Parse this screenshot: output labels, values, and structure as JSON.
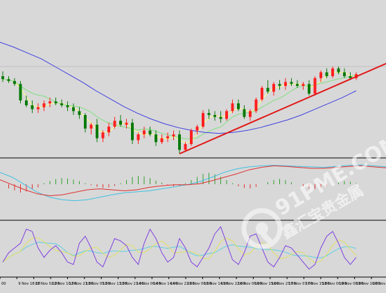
{
  "chart_data": [
    {
      "type": "candlestick",
      "panel": "price",
      "overlays": [
        {
          "name": "",
          "color": "#ffff80"
        },
        {
          "name": "",
          "color": "#80e080"
        },
        {
          "name": "",
          "color": "#4040e0"
        },
        {
          "name": "",
          "color": "#e02020"
        }
      ],
      "horizontal_line": {
        "color": "#c0c0c0"
      },
      "candles": [
        {
          "i": 0,
          "o": 0.8,
          "h": 0.85,
          "l": 0.74,
          "c": 0.77
        },
        {
          "i": 1,
          "o": 0.77,
          "h": 0.8,
          "l": 0.73,
          "c": 0.75
        },
        {
          "i": 2,
          "o": 0.75,
          "h": 0.78,
          "l": 0.7,
          "c": 0.72
        },
        {
          "i": 3,
          "o": 0.72,
          "h": 0.75,
          "l": 0.52,
          "c": 0.55
        },
        {
          "i": 4,
          "o": 0.55,
          "h": 0.6,
          "l": 0.48,
          "c": 0.5
        },
        {
          "i": 5,
          "o": 0.5,
          "h": 0.55,
          "l": 0.42,
          "c": 0.46
        },
        {
          "i": 6,
          "o": 0.46,
          "h": 0.52,
          "l": 0.42,
          "c": 0.48
        },
        {
          "i": 7,
          "o": 0.48,
          "h": 0.55,
          "l": 0.44,
          "c": 0.52
        },
        {
          "i": 8,
          "o": 0.52,
          "h": 0.58,
          "l": 0.48,
          "c": 0.54
        },
        {
          "i": 9,
          "o": 0.54,
          "h": 0.58,
          "l": 0.5,
          "c": 0.52
        },
        {
          "i": 10,
          "o": 0.52,
          "h": 0.56,
          "l": 0.48,
          "c": 0.5
        },
        {
          "i": 11,
          "o": 0.5,
          "h": 0.54,
          "l": 0.44,
          "c": 0.48
        },
        {
          "i": 12,
          "o": 0.48,
          "h": 0.52,
          "l": 0.4,
          "c": 0.44
        },
        {
          "i": 13,
          "o": 0.44,
          "h": 0.48,
          "l": 0.36,
          "c": 0.4
        },
        {
          "i": 14,
          "o": 0.4,
          "h": 0.42,
          "l": 0.22,
          "c": 0.26
        },
        {
          "i": 15,
          "o": 0.26,
          "h": 0.32,
          "l": 0.2,
          "c": 0.3
        },
        {
          "i": 16,
          "o": 0.3,
          "h": 0.36,
          "l": 0.12,
          "c": 0.16
        },
        {
          "i": 17,
          "o": 0.16,
          "h": 0.24,
          "l": 0.12,
          "c": 0.22
        },
        {
          "i": 18,
          "o": 0.22,
          "h": 0.32,
          "l": 0.18,
          "c": 0.28
        },
        {
          "i": 19,
          "o": 0.28,
          "h": 0.38,
          "l": 0.26,
          "c": 0.34
        },
        {
          "i": 20,
          "o": 0.34,
          "h": 0.4,
          "l": 0.28,
          "c": 0.3
        },
        {
          "i": 21,
          "o": 0.3,
          "h": 0.36,
          "l": 0.26,
          "c": 0.32
        },
        {
          "i": 22,
          "o": 0.32,
          "h": 0.36,
          "l": 0.1,
          "c": 0.14
        },
        {
          "i": 23,
          "o": 0.14,
          "h": 0.22,
          "l": 0.1,
          "c": 0.2
        },
        {
          "i": 24,
          "o": 0.2,
          "h": 0.28,
          "l": 0.16,
          "c": 0.24
        },
        {
          "i": 25,
          "o": 0.24,
          "h": 0.28,
          "l": 0.18,
          "c": 0.2
        },
        {
          "i": 26,
          "o": 0.2,
          "h": 0.24,
          "l": 0.08,
          "c": 0.12
        },
        {
          "i": 27,
          "o": 0.12,
          "h": 0.2,
          "l": 0.1,
          "c": 0.16
        },
        {
          "i": 28,
          "o": 0.16,
          "h": 0.22,
          "l": 0.12,
          "c": 0.18
        },
        {
          "i": 29,
          "o": 0.18,
          "h": 0.24,
          "l": 0.14,
          "c": 0.2
        },
        {
          "i": 30,
          "o": 0.2,
          "h": 0.24,
          "l": 0.0,
          "c": 0.04
        },
        {
          "i": 31,
          "o": 0.04,
          "h": 0.12,
          "l": 0.02,
          "c": 0.1
        },
        {
          "i": 32,
          "o": 0.1,
          "h": 0.26,
          "l": 0.08,
          "c": 0.24
        },
        {
          "i": 33,
          "o": 0.24,
          "h": 0.3,
          "l": 0.2,
          "c": 0.28
        },
        {
          "i": 34,
          "o": 0.28,
          "h": 0.45,
          "l": 0.26,
          "c": 0.42
        },
        {
          "i": 35,
          "o": 0.42,
          "h": 0.46,
          "l": 0.36,
          "c": 0.4
        },
        {
          "i": 36,
          "o": 0.4,
          "h": 0.44,
          "l": 0.34,
          "c": 0.38
        },
        {
          "i": 37,
          "o": 0.38,
          "h": 0.44,
          "l": 0.32,
          "c": 0.36
        },
        {
          "i": 38,
          "o": 0.36,
          "h": 0.46,
          "l": 0.34,
          "c": 0.44
        },
        {
          "i": 39,
          "o": 0.44,
          "h": 0.56,
          "l": 0.42,
          "c": 0.52
        },
        {
          "i": 40,
          "o": 0.52,
          "h": 0.56,
          "l": 0.44,
          "c": 0.46
        },
        {
          "i": 41,
          "o": 0.46,
          "h": 0.5,
          "l": 0.36,
          "c": 0.38
        },
        {
          "i": 42,
          "o": 0.38,
          "h": 0.46,
          "l": 0.34,
          "c": 0.44
        },
        {
          "i": 43,
          "o": 0.44,
          "h": 0.58,
          "l": 0.42,
          "c": 0.56
        },
        {
          "i": 44,
          "o": 0.56,
          "h": 0.7,
          "l": 0.54,
          "c": 0.68
        },
        {
          "i": 45,
          "o": 0.68,
          "h": 0.76,
          "l": 0.62,
          "c": 0.64
        },
        {
          "i": 46,
          "o": 0.64,
          "h": 0.74,
          "l": 0.6,
          "c": 0.72
        },
        {
          "i": 47,
          "o": 0.72,
          "h": 0.76,
          "l": 0.66,
          "c": 0.7
        },
        {
          "i": 48,
          "o": 0.7,
          "h": 0.78,
          "l": 0.66,
          "c": 0.74
        },
        {
          "i": 49,
          "o": 0.74,
          "h": 0.78,
          "l": 0.7,
          "c": 0.72
        },
        {
          "i": 50,
          "o": 0.72,
          "h": 0.76,
          "l": 0.68,
          "c": 0.7
        },
        {
          "i": 51,
          "o": 0.7,
          "h": 0.74,
          "l": 0.66,
          "c": 0.72
        },
        {
          "i": 52,
          "o": 0.72,
          "h": 0.76,
          "l": 0.6,
          "c": 0.62
        },
        {
          "i": 53,
          "o": 0.62,
          "h": 0.8,
          "l": 0.6,
          "c": 0.78
        },
        {
          "i": 54,
          "o": 0.78,
          "h": 0.86,
          "l": 0.74,
          "c": 0.84
        },
        {
          "i": 55,
          "o": 0.84,
          "h": 0.88,
          "l": 0.78,
          "c": 0.8
        },
        {
          "i": 56,
          "o": 0.8,
          "h": 0.9,
          "l": 0.78,
          "c": 0.88
        },
        {
          "i": 57,
          "o": 0.88,
          "h": 0.9,
          "l": 0.82,
          "c": 0.84
        },
        {
          "i": 58,
          "o": 0.84,
          "h": 0.88,
          "l": 0.78,
          "c": 0.8
        },
        {
          "i": 59,
          "o": 0.8,
          "h": 0.84,
          "l": 0.76,
          "c": 0.78
        },
        {
          "i": 60,
          "o": 0.78,
          "h": 0.84,
          "l": 0.76,
          "c": 0.82
        }
      ]
    },
    {
      "type": "histogram",
      "panel": "oscillator-1",
      "bars": [
        0,
        -0.2,
        -0.3,
        -0.4,
        -0.35,
        -0.25,
        -0.15,
        0.05,
        0.15,
        0.25,
        0.3,
        0.28,
        0.22,
        0.15,
        0.05,
        -0.05,
        -0.12,
        -0.18,
        -0.15,
        -0.08,
        0.05,
        0.2,
        0.35,
        0.4,
        0.38,
        0.3,
        0.18,
        0.08,
        -0.05,
        -0.1,
        -0.08,
        0.05,
        0.2,
        0.35,
        0.5,
        0.55,
        0.48,
        0.36,
        0.2,
        0.05,
        -0.1,
        -0.18,
        -0.2,
        -0.12,
        0,
        0.1,
        0.2,
        0.26,
        0.2,
        0.1,
        0,
        -0.1,
        -0.2,
        -0.22,
        -0.18,
        -0.1,
        0,
        0.1,
        0.15,
        0.12,
        0.05
      ],
      "series": [
        {
          "name": "",
          "color": "#e03030"
        },
        {
          "name": "",
          "color": "#40c0e0"
        }
      ]
    },
    {
      "type": "line",
      "panel": "oscillator-2",
      "series": [
        {
          "name": "",
          "color": "#8040e0"
        },
        {
          "name": "",
          "color": "#e0e060"
        },
        {
          "name": "",
          "color": "#60d0e0"
        }
      ]
    }
  ],
  "x_axis": {
    "tick_labels": [
      "00",
      "9 Nov 18:00",
      "12 Nov 02:00",
      "12 Nov 10:00",
      "12 Nov 21:00",
      "13 Nov 05:00",
      "13 Nov 13:00",
      "13 Nov 21:00",
      "14 Nov 06:00",
      "14 Nov 14:00",
      "14 Nov 22:00",
      "15 Nov 06:00",
      "15 Nov 14:00",
      "15 Nov 22:00",
      "16 Nov 06:00",
      "16 Nov 15:00",
      "16 Nov 23:00",
      "17 Nov 07:00",
      "17 Nov 15:00",
      "18 Nov 00:00",
      "19 Nov 08:00",
      "19 Nov 16:00",
      "20 Nov 00:00"
    ]
  },
  "watermark": {
    "text": "91PME.COM",
    "subtext": "鑫汇宝贵金属"
  },
  "colors": {
    "background": "#d8d8d8",
    "bull": "#ff2020",
    "bear": "#0a7a0a",
    "trendline": "#e01818",
    "border": "#000000"
  }
}
